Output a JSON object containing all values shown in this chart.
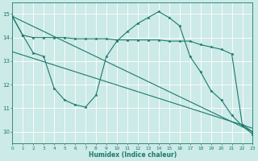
{
  "xlabel": "Humidex (Indice chaleur)",
  "bg_color": "#cceae7",
  "line_color": "#1a7a6e",
  "grid_color": "#ffffff",
  "xlim": [
    0,
    23
  ],
  "ylim": [
    9.5,
    15.5
  ],
  "yticks": [
    10,
    11,
    12,
    13,
    14,
    15
  ],
  "xticks": [
    0,
    1,
    2,
    3,
    4,
    5,
    6,
    7,
    8,
    9,
    10,
    11,
    12,
    13,
    14,
    15,
    16,
    17,
    18,
    19,
    20,
    21,
    22,
    23
  ],
  "series1_x": [
    0,
    1,
    2,
    3,
    4,
    5,
    6,
    7,
    8,
    9,
    10,
    11,
    12,
    13,
    14,
    15,
    16,
    17,
    18,
    19,
    20,
    21,
    22,
    23
  ],
  "series1_y": [
    14.9,
    14.1,
    14.0,
    14.0,
    14.0,
    14.0,
    13.95,
    13.95,
    13.95,
    13.95,
    13.9,
    13.9,
    13.9,
    13.9,
    13.9,
    13.85,
    13.85,
    13.85,
    13.7,
    13.6,
    13.5,
    13.3,
    10.3,
    10.0
  ],
  "series2_x": [
    0,
    1,
    2,
    3,
    4,
    5,
    6,
    7,
    8,
    9,
    10,
    11,
    12,
    13,
    14,
    15,
    16,
    17,
    18,
    19,
    20,
    21,
    22,
    23
  ],
  "series2_y": [
    14.9,
    14.1,
    13.35,
    13.2,
    11.85,
    11.35,
    11.15,
    11.05,
    11.55,
    13.2,
    13.85,
    14.25,
    14.6,
    14.85,
    15.1,
    14.85,
    14.5,
    13.2,
    12.55,
    11.75,
    11.35,
    10.7,
    10.25,
    9.9
  ],
  "series3_x": [
    0,
    23
  ],
  "series3_y": [
    14.9,
    10.0
  ],
  "series4_x": [
    0,
    23
  ],
  "series4_y": [
    13.4,
    10.15
  ]
}
